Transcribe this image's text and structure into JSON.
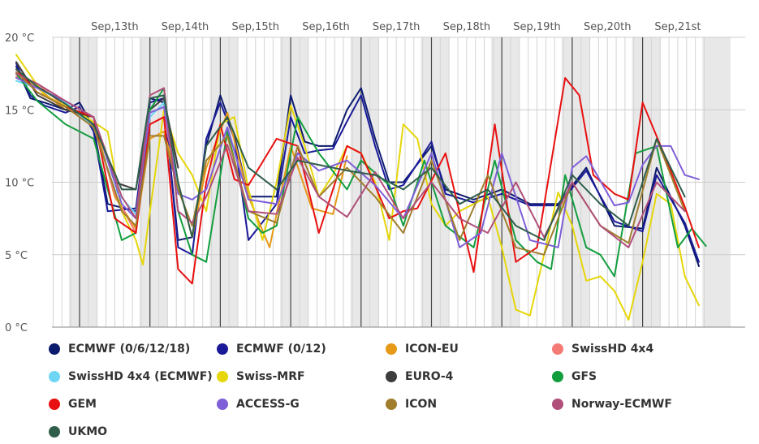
{
  "chart_data": {
    "type": "line",
    "title": "",
    "xlabel": "",
    "ylabel": "",
    "ylim": [
      0,
      20
    ],
    "xlim": [
      0,
      9.9
    ],
    "y_ticks": [
      {
        "value": 0,
        "label": "0 °C"
      },
      {
        "value": 5,
        "label": "5 °C"
      },
      {
        "value": 10,
        "label": "10 °C"
      },
      {
        "value": 15,
        "label": "15 °C"
      },
      {
        "value": 20,
        "label": "20 °C"
      }
    ],
    "x_ticks": [
      {
        "day": 1,
        "label": "Sep,13th"
      },
      {
        "day": 2,
        "label": "Sep,14th"
      },
      {
        "day": 3,
        "label": "Sep,15th"
      },
      {
        "day": 4,
        "label": "Sep,16th"
      },
      {
        "day": 5,
        "label": "Sep,17th"
      },
      {
        "day": 6,
        "label": "Sep,18th"
      },
      {
        "day": 7,
        "label": "Sep,19th"
      },
      {
        "day": 8,
        "label": "Sep,20th"
      },
      {
        "day": 9,
        "label": "Sep,21st"
      }
    ],
    "grid": true,
    "legend_position": "bottom",
    "series": [
      {
        "name": "ECMWF (0/6/12/18)",
        "color": "#0d1b6e",
        "x": [
          0.1,
          0.3,
          0.5,
          0.8,
          1.0,
          1.2,
          1.4,
          1.8,
          2.0,
          2.2,
          2.4,
          2.6,
          2.8,
          3.0,
          3.2,
          3.4,
          3.8,
          4.0,
          4.2,
          4.4,
          4.6,
          4.8,
          5.0,
          5.2,
          5.4,
          5.6,
          6.0,
          6.2,
          6.6,
          7.0,
          7.4,
          7.8,
          8.2,
          8.6,
          9.0,
          9.2,
          9.6,
          9.8
        ],
        "y": [
          18,
          15.8,
          15.5,
          15.0,
          15.5,
          13.8,
          8.5,
          8.0,
          15.8,
          15.5,
          6.0,
          6.2,
          12.5,
          16.0,
          13.2,
          9.0,
          9.0,
          16.0,
          12.8,
          12.5,
          12.5,
          15.0,
          16.5,
          13.0,
          10.0,
          10.0,
          12.5,
          9.5,
          8.8,
          9.5,
          8.5,
          8.5,
          11.0,
          7.0,
          6.8,
          11.0,
          7.0,
          4.2
        ]
      },
      {
        "name": "ECMWF (0/12)",
        "color": "#1a1a99",
        "x": [
          0.1,
          0.3,
          0.5,
          0.8,
          1.0,
          1.2,
          1.4,
          1.8,
          2.0,
          2.2,
          2.4,
          2.6,
          2.8,
          3.0,
          3.2,
          3.4,
          3.8,
          4.0,
          4.2,
          4.4,
          4.6,
          4.8,
          5.0,
          5.2,
          5.4,
          5.6,
          6.0,
          6.2,
          6.6,
          7.0,
          7.4,
          7.8,
          8.2,
          8.6,
          9.0,
          9.2,
          9.6,
          9.8
        ],
        "y": [
          18.2,
          16.0,
          15.3,
          14.8,
          15.2,
          13.5,
          8.0,
          8.2,
          15.5,
          15.8,
          5.5,
          5.0,
          13.0,
          15.5,
          13.0,
          6.0,
          8.5,
          14.5,
          12.0,
          12.2,
          12.3,
          14.2,
          16.0,
          12.5,
          9.5,
          9.8,
          12.8,
          9.2,
          8.6,
          9.2,
          8.4,
          8.4,
          10.8,
          7.3,
          6.6,
          10.5,
          7.2,
          4.5
        ]
      },
      {
        "name": "ICON-EU",
        "color": "#e69a18",
        "x": [
          0.1,
          0.4,
          0.8,
          1.2,
          1.5,
          1.8,
          2.0,
          2.2,
          2.4,
          2.6,
          2.8,
          3.1,
          3.4,
          3.7,
          4.0,
          4.3,
          4.6,
          4.8
        ],
        "y": [
          17.5,
          16.5,
          15.0,
          14.5,
          9.0,
          6.8,
          13.0,
          13.5,
          10.0,
          6.2,
          11.0,
          14.8,
          9.0,
          5.5,
          12.5,
          8.2,
          7.8,
          11.8
        ]
      },
      {
        "name": "SwissHD 4x4",
        "color": "#f47a76",
        "x": [
          0.1,
          0.4,
          0.8,
          1.2,
          1.5,
          1.8,
          2.0,
          2.2,
          2.4
        ],
        "y": [
          17.3,
          16.8,
          15.2,
          14.0,
          9.2,
          6.5,
          14.0,
          14.5,
          10.0
        ]
      },
      {
        "name": "SwissHD 4x4 (ECMWF)",
        "color": "#6dd6f5",
        "x": [
          0.1,
          0.4,
          0.8,
          1.2,
          1.5,
          1.8,
          2.0,
          2.2,
          2.4
        ],
        "y": [
          17.0,
          16.5,
          15.5,
          13.8,
          9.5,
          7.8,
          14.5,
          15.5,
          9.5
        ]
      },
      {
        "name": "Swiss-MRF",
        "color": "#e6d60a",
        "x": [
          0.1,
          0.5,
          1.0,
          1.4,
          1.6,
          1.8,
          1.9,
          2.0,
          2.2,
          2.4,
          2.6,
          2.8,
          3.0,
          3.2,
          3.4,
          3.6,
          3.8,
          4.0,
          4.2,
          4.4,
          4.6,
          4.8,
          5.0,
          5.2,
          5.4,
          5.6,
          5.8,
          6.0,
          6.2,
          6.4,
          6.6,
          6.8,
          7.0,
          7.2,
          7.4,
          7.6,
          7.8,
          8.0,
          8.2,
          8.4,
          8.6,
          8.8,
          9.0,
          9.2,
          9.4,
          9.6,
          9.8
        ],
        "y": [
          18.8,
          16.0,
          14.8,
          13.5,
          8.0,
          6.0,
          4.3,
          8.0,
          15.0,
          12.0,
          10.5,
          8.0,
          14.0,
          14.5,
          9.5,
          6.0,
          10.0,
          15.3,
          12.5,
          9.0,
          10.5,
          12.5,
          12.0,
          10.0,
          6.0,
          14.0,
          13.0,
          8.5,
          7.0,
          8.0,
          8.5,
          9.0,
          5.5,
          1.2,
          0.8,
          5.0,
          9.3,
          7.0,
          3.2,
          3.5,
          2.5,
          0.5,
          4.5,
          9.2,
          8.5,
          3.5,
          1.5
        ]
      },
      {
        "name": "EURO-4",
        "color": "#3d3d3d",
        "x": [
          0.1,
          0.4,
          0.8,
          1.2,
          1.5,
          1.8,
          2.0,
          2.2,
          2.4
        ],
        "y": [
          18.3,
          16.0,
          15.0,
          14.5,
          10.0,
          9.5,
          15.0,
          15.8,
          11.0
        ]
      },
      {
        "name": "GFS",
        "color": "#139e3e",
        "x": [
          0.1,
          0.4,
          0.8,
          1.2,
          1.6,
          1.8,
          2.0,
          2.2,
          2.4,
          2.6,
          2.8,
          3.1,
          3.4,
          3.6,
          3.8,
          4.1,
          4.4,
          4.8,
          5.0,
          5.4,
          5.6,
          5.9,
          6.2,
          6.6,
          6.9,
          7.2,
          7.5,
          7.7,
          7.9,
          8.2,
          8.4,
          8.6,
          8.9,
          9.2,
          9.5,
          9.7,
          9.9
        ],
        "y": [
          17.5,
          15.6,
          14.0,
          13.0,
          6.0,
          6.5,
          15.0,
          16.5,
          8.0,
          5.0,
          4.5,
          13.5,
          7.5,
          6.5,
          7.0,
          14.5,
          12.0,
          9.5,
          11.5,
          9.8,
          7.0,
          11.5,
          7.0,
          5.5,
          11.5,
          6.0,
          4.5,
          4.0,
          10.5,
          5.5,
          5.0,
          3.5,
          12.0,
          12.5,
          5.5,
          6.8,
          5.6
        ]
      },
      {
        "name": "GEM",
        "color": "#e81010",
        "x": [
          0.1,
          0.4,
          0.8,
          1.2,
          1.5,
          1.8,
          2.0,
          2.2,
          2.4,
          2.6,
          2.8,
          3.0,
          3.2,
          3.4,
          3.8,
          4.1,
          4.4,
          4.8,
          5.0,
          5.4,
          5.6,
          5.8,
          6.2,
          6.6,
          6.9,
          7.2,
          7.5,
          7.9,
          8.1,
          8.3,
          8.6,
          8.8,
          9.0,
          9.3,
          9.6,
          9.8
        ],
        "y": [
          17.8,
          16.2,
          15.2,
          14.5,
          7.5,
          6.5,
          14.0,
          14.5,
          4.0,
          3.0,
          10.0,
          14.0,
          10.2,
          9.8,
          13.0,
          12.5,
          6.5,
          12.5,
          12.0,
          7.5,
          8.0,
          8.2,
          12.0,
          3.8,
          14.0,
          4.5,
          5.5,
          17.2,
          16.0,
          10.5,
          9.2,
          8.8,
          15.5,
          12.0,
          8.3,
          5.5
        ]
      },
      {
        "name": "ACCESS-G",
        "color": "#7f5fd8",
        "x": [
          0.1,
          0.4,
          0.8,
          1.2,
          1.6,
          1.8,
          2.0,
          2.2,
          2.4,
          2.6,
          2.8,
          3.1,
          3.4,
          3.8,
          4.1,
          4.4,
          4.8,
          5.2,
          5.6,
          6.0,
          6.4,
          6.7,
          7.0,
          7.4,
          7.8,
          8.0,
          8.2,
          8.6,
          8.8,
          9.0,
          9.2,
          9.4,
          9.6,
          9.8
        ],
        "y": [
          17.2,
          16.5,
          15.6,
          14.5,
          8.5,
          7.5,
          14.8,
          15.2,
          9.2,
          8.8,
          9.5,
          13.8,
          8.8,
          8.5,
          12.0,
          10.8,
          11.5,
          9.8,
          7.5,
          12.0,
          5.5,
          6.5,
          12.0,
          6.0,
          5.5,
          11.0,
          11.8,
          8.4,
          8.6,
          11.2,
          12.5,
          12.5,
          10.5,
          10.2
        ]
      },
      {
        "name": "ICON",
        "color": "#a07e2e",
        "x": [
          0.1,
          0.4,
          0.8,
          1.2,
          1.6,
          1.8,
          2.0,
          2.2,
          2.4,
          2.6,
          2.8,
          3.1,
          3.4,
          3.8,
          4.1,
          4.4,
          4.8,
          5.2,
          5.6,
          6.0,
          6.4,
          6.8,
          7.2,
          7.6,
          8.0,
          8.4,
          8.8,
          9.2,
          9.6
        ],
        "y": [
          17.6,
          16.2,
          15.2,
          13.8,
          8.0,
          7.0,
          13.2,
          13.2,
          9.5,
          7.0,
          11.5,
          13.2,
          8.0,
          7.2,
          12.5,
          9.0,
          11.0,
          9.0,
          6.5,
          11.5,
          6.0,
          10.5,
          5.5,
          5.0,
          10.0,
          7.0,
          5.8,
          13.0,
          8.0
        ]
      },
      {
        "name": "Norway-ECMWF",
        "color": "#b04f7a",
        "x": [
          0.1,
          0.4,
          0.8,
          1.2,
          1.6,
          1.8,
          2.0,
          2.2,
          2.4,
          2.6,
          2.8,
          3.1,
          3.4,
          3.8,
          4.1,
          4.4,
          4.8,
          5.2,
          5.6,
          6.0,
          6.4,
          6.8,
          7.2,
          7.6,
          8.0,
          8.4,
          8.8,
          9.2,
          9.6
        ],
        "y": [
          17.5,
          16.8,
          15.6,
          14.5,
          9.0,
          7.5,
          16.0,
          16.5,
          8.0,
          7.2,
          9.0,
          12.6,
          8.0,
          7.8,
          11.7,
          9.0,
          7.6,
          10.7,
          7.5,
          10.0,
          7.5,
          6.5,
          10.0,
          6.2,
          10.0,
          7.0,
          5.5,
          10.0,
          8.0
        ]
      },
      {
        "name": "UKMO",
        "color": "#2f5e4a",
        "x": [
          0.1,
          0.4,
          0.8,
          1.2,
          1.6,
          1.8,
          2.0,
          2.2,
          2.4,
          2.6,
          2.8,
          3.1,
          3.4,
          3.8,
          4.1,
          4.4,
          4.8,
          5.2,
          5.6,
          6.0,
          6.4,
          6.8,
          7.2,
          7.6,
          8.0,
          8.4,
          8.8,
          9.2,
          9.6
        ],
        "y": [
          17.8,
          16.6,
          15.4,
          14.0,
          9.5,
          9.5,
          15.8,
          16.0,
          10.0,
          6.2,
          12.5,
          14.5,
          11.0,
          9.5,
          11.5,
          11.2,
          10.8,
          10.5,
          9.5,
          11.0,
          8.5,
          9.5,
          7.0,
          6.0,
          10.5,
          8.5,
          7.0,
          13.0,
          9.0
        ]
      }
    ]
  }
}
